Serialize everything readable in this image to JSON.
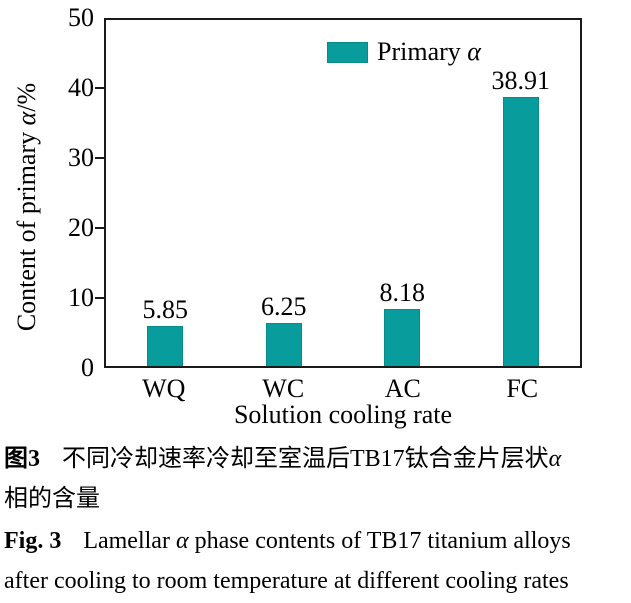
{
  "chart_data": {
    "type": "bar",
    "categories": [
      "WQ",
      "WC",
      "AC",
      "FC"
    ],
    "values": [
      5.85,
      6.25,
      8.18,
      38.91
    ],
    "value_labels": [
      "5.85",
      "6.25",
      "8.18",
      "38.91"
    ],
    "series": [
      {
        "name": "Primary α",
        "values": [
          5.85,
          6.25,
          8.18,
          38.91
        ]
      }
    ],
    "title": "",
    "xlabel": "Solution cooling rate",
    "ylabel": "Content of primary α/%",
    "ylabel_parts": {
      "prefix": "Content of primary ",
      "alpha": "α",
      "suffix": "/%"
    },
    "ylim": [
      0,
      50
    ],
    "yticks": [
      0,
      10,
      20,
      30,
      40,
      50
    ],
    "grid": false,
    "legend_position": "upper center inside plot",
    "bar_color": "#089c9c",
    "bar_border_color": "#078a8a",
    "axis_color": "#1a1a1a"
  },
  "legend": {
    "label_text": "Primary ",
    "alpha": "α"
  },
  "caption_cn": {
    "label": "图3",
    "line1_text": "不同冷却速率冷却至室温后TB17钛合金片层状",
    "alpha": "α",
    "line2_text": "相的含量"
  },
  "caption_en": {
    "label": "Fig. 3",
    "line1_a": "Lamellar ",
    "alpha": "α",
    "line1_b": " phase contents of TB17 titanium alloys",
    "line2_text": "after cooling to room temperature at different cooling rates"
  }
}
